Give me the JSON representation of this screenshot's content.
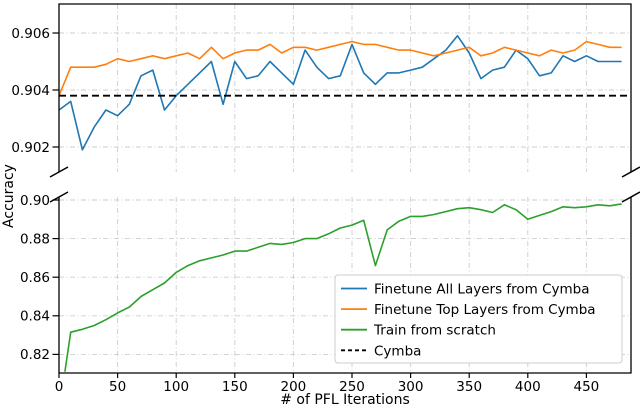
{
  "chart_data": {
    "type": "line",
    "title": "",
    "xlabel": "# of PFL Iterations",
    "ylabel": "Accuracy",
    "broken_y_axis": true,
    "grid": true,
    "x_ticks": [
      0,
      50,
      100,
      150,
      200,
      250,
      300,
      350,
      400,
      450
    ],
    "x_lim": [
      0,
      488
    ],
    "panels": [
      {
        "id": "top",
        "y_tick_labels": [
          "0.902",
          "0.904",
          "0.906"
        ],
        "y_tick_values": [
          0.902,
          0.904,
          0.906
        ],
        "y_lim": [
          0.9011,
          0.907
        ]
      },
      {
        "id": "bottom",
        "y_tick_labels": [
          "0.82",
          "0.84",
          "0.86",
          "0.88",
          "0.90"
        ],
        "y_tick_values": [
          0.82,
          0.84,
          0.86,
          0.88,
          0.9
        ],
        "y_lim": [
          0.8104,
          0.9016
        ]
      }
    ],
    "series": [
      {
        "name": "Finetune All Layers from Cymba",
        "color": "#1f77b4",
        "panel": "top",
        "line_style": "solid",
        "x": [
          0,
          10,
          20,
          30,
          40,
          50,
          60,
          70,
          80,
          90,
          100,
          110,
          120,
          130,
          140,
          150,
          160,
          170,
          180,
          190,
          200,
          210,
          220,
          230,
          240,
          250,
          260,
          270,
          280,
          290,
          300,
          310,
          320,
          330,
          340,
          350,
          360,
          370,
          380,
          390,
          400,
          410,
          420,
          430,
          440,
          450,
          460,
          470,
          480
        ],
        "y": [
          0.9033,
          0.9036,
          0.9019,
          0.9027,
          0.9033,
          0.9031,
          0.9035,
          0.9045,
          0.9047,
          0.9033,
          0.9038,
          0.9042,
          0.9046,
          0.905,
          0.9035,
          0.905,
          0.9044,
          0.9045,
          0.905,
          0.9046,
          0.9042,
          0.9054,
          0.9048,
          0.9044,
          0.9045,
          0.9056,
          0.9046,
          0.9042,
          0.9046,
          0.9046,
          0.9047,
          0.9048,
          0.9051,
          0.9054,
          0.9059,
          0.9053,
          0.9044,
          0.9047,
          0.9048,
          0.9054,
          0.9051,
          0.9045,
          0.9046,
          0.9052,
          0.905,
          0.9052,
          0.905,
          0.905,
          0.905
        ]
      },
      {
        "name": "Finetune Top Layers from Cymba",
        "color": "#ff7f0e",
        "panel": "top",
        "line_style": "solid",
        "x": [
          0,
          10,
          20,
          30,
          40,
          50,
          60,
          70,
          80,
          90,
          100,
          110,
          120,
          130,
          140,
          150,
          160,
          170,
          180,
          190,
          200,
          210,
          220,
          230,
          240,
          250,
          260,
          270,
          280,
          290,
          300,
          310,
          320,
          330,
          340,
          350,
          360,
          370,
          380,
          390,
          400,
          410,
          420,
          430,
          440,
          450,
          460,
          470,
          480
        ],
        "y": [
          0.9038,
          0.9048,
          0.9048,
          0.9048,
          0.9049,
          0.9051,
          0.905,
          0.9051,
          0.9052,
          0.9051,
          0.9052,
          0.9053,
          0.9051,
          0.9055,
          0.9051,
          0.9053,
          0.9054,
          0.9054,
          0.9056,
          0.9053,
          0.9055,
          0.9055,
          0.9054,
          0.9055,
          0.9056,
          0.9057,
          0.9056,
          0.9056,
          0.9055,
          0.9054,
          0.9054,
          0.9053,
          0.9052,
          0.9053,
          0.9054,
          0.9055,
          0.9052,
          0.9053,
          0.9055,
          0.9054,
          0.9053,
          0.9052,
          0.9054,
          0.9053,
          0.9054,
          0.9057,
          0.9056,
          0.9055,
          0.9055
        ]
      },
      {
        "name": "Train from scratch",
        "color": "#2ca02c",
        "panel": "bottom",
        "line_style": "solid",
        "x": [
          5,
          10,
          20,
          30,
          40,
          50,
          60,
          70,
          80,
          90,
          100,
          110,
          120,
          130,
          140,
          150,
          160,
          170,
          180,
          190,
          200,
          210,
          220,
          230,
          240,
          250,
          260,
          270,
          280,
          290,
          300,
          310,
          320,
          330,
          340,
          350,
          360,
          370,
          380,
          390,
          400,
          410,
          420,
          430,
          440,
          450,
          460,
          470,
          480
        ],
        "y": [
          0.811,
          0.8315,
          0.833,
          0.835,
          0.838,
          0.8415,
          0.8445,
          0.85,
          0.8535,
          0.857,
          0.8625,
          0.866,
          0.8685,
          0.87,
          0.8715,
          0.8735,
          0.8735,
          0.8755,
          0.8775,
          0.877,
          0.878,
          0.88,
          0.88,
          0.8825,
          0.8855,
          0.887,
          0.8895,
          0.866,
          0.8845,
          0.889,
          0.8915,
          0.8915,
          0.8925,
          0.894,
          0.8955,
          0.896,
          0.895,
          0.8935,
          0.8975,
          0.895,
          0.89,
          0.892,
          0.894,
          0.8965,
          0.896,
          0.8965,
          0.8975,
          0.897,
          0.898
        ]
      },
      {
        "name": "Cymba",
        "color": "#000000",
        "panel": "top",
        "line_style": "dashed",
        "x": [
          0,
          488
        ],
        "y": [
          0.9038,
          0.9038
        ]
      }
    ],
    "legend": {
      "position": "lower right",
      "entries": [
        "Finetune All Layers from Cymba",
        "Finetune Top Layers from Cymba",
        "Train from scratch",
        "Cymba"
      ]
    }
  },
  "colors": {
    "background": "#ffffff",
    "axis": "#000000",
    "grid": "#cdcdcd",
    "legend_border": "#cccccc",
    "blue": "#1f77b4",
    "orange": "#ff7f0e",
    "green": "#2ca02c"
  }
}
